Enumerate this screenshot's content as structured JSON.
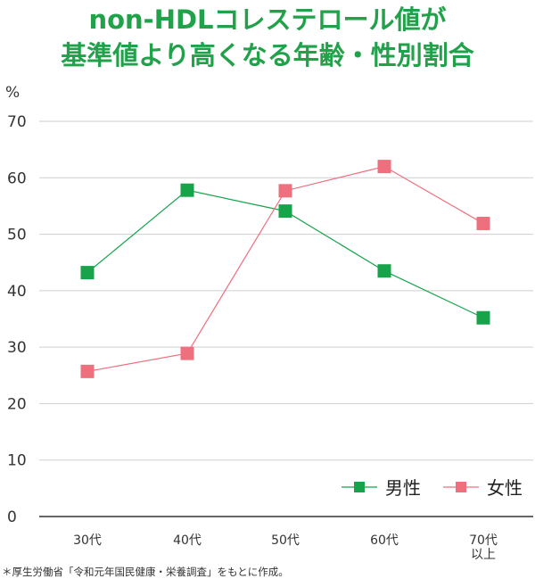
{
  "title": {
    "line1": "non-HDLコレステロール値が",
    "line2": "基準値より高くなる年齢・性別割合"
  },
  "footnote": "＊厚生労働省「令和元年国民健康・栄養調査」をもとに作成。",
  "colors": {
    "title": "#21a14a",
    "male": "#16a34a",
    "female": "#ee6f7d",
    "grid": "#cfcfcf"
  },
  "chart_data": {
    "type": "line",
    "ylabel": "%",
    "ylim": [
      0,
      70
    ],
    "yticks": [
      "0",
      "10",
      "20",
      "30",
      "40",
      "50",
      "60",
      "70"
    ],
    "categories": [
      [
        "30代"
      ],
      [
        "40代"
      ],
      [
        "50代"
      ],
      [
        "60代"
      ],
      [
        "70代",
        "以上"
      ]
    ],
    "series": [
      {
        "name": "男性",
        "values": [
          43.2,
          57.8,
          54.1,
          43.5,
          35.2
        ]
      },
      {
        "name": "女性",
        "values": [
          25.7,
          28.9,
          57.7,
          62.0,
          51.9
        ]
      }
    ],
    "grid": true,
    "legend_position": "bottom-right"
  }
}
